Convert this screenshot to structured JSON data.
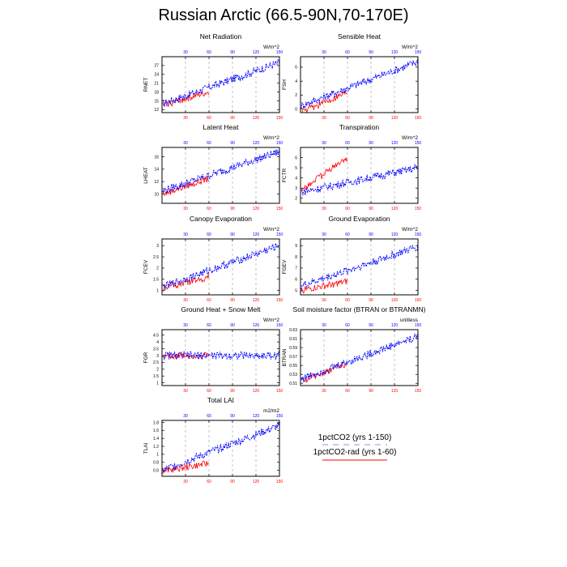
{
  "title": "Russian Arctic (66.5-90N,70-170E)",
  "legend": {
    "items": [
      {
        "label": "1pctCO2 (yrs 1-150)",
        "color": "#0000ff",
        "dash": true
      },
      {
        "label": "1pctCO2-rad (yrs 1-60)",
        "color": "#ff0000",
        "dash": false
      }
    ]
  },
  "colors": {
    "series_full": "#0000ff",
    "series_rad": "#ff0000",
    "top_ticks": "#0000ff",
    "bottom_ticks": "#ff0000"
  },
  "chart_data": [
    {
      "type": "line",
      "title": "Net Radiation",
      "ylabel": "RNET",
      "units": "W/m^2",
      "x_ticks": [
        30,
        60,
        90,
        120,
        150
      ],
      "ylim": [
        11,
        30
      ],
      "yticks": [
        12,
        15,
        18,
        21,
        24,
        27
      ],
      "series": [
        {
          "name": "1pctCO2 (yrs 1-150)",
          "range": [
            14,
            28
          ]
        },
        {
          "name": "1pctCO2-rad (yrs 1-60)",
          "range": [
            13.5,
            18
          ]
        }
      ]
    },
    {
      "type": "line",
      "title": "Sensible Heat",
      "ylabel": "FSH",
      "units": "W/m^2",
      "x_ticks": [
        30,
        60,
        90,
        120,
        150
      ],
      "ylim": [
        -0.5,
        7.5
      ],
      "yticks": [
        0.0,
        2.0,
        4.0,
        6.0
      ],
      "series": [
        {
          "name": "1pctCO2 (yrs 1-150)",
          "range": [
            0.5,
            6.8
          ]
        },
        {
          "name": "1pctCO2-rad (yrs 1-60)",
          "range": [
            -0.5,
            2.5
          ]
        }
      ]
    },
    {
      "type": "line",
      "title": "Latent Heat",
      "ylabel": "LHEAT",
      "units": "W/m^2",
      "x_ticks": [
        30,
        60,
        90,
        120,
        150
      ],
      "ylim": [
        8.5,
        17.5
      ],
      "yticks": [
        10,
        12,
        14,
        16
      ],
      "series": [
        {
          "name": "1pctCO2 (yrs 1-150)",
          "range": [
            10.5,
            16.8
          ]
        },
        {
          "name": "1pctCO2-rad (yrs 1-60)",
          "range": [
            10,
            12.5
          ]
        }
      ]
    },
    {
      "type": "line",
      "title": "Transpiration",
      "ylabel": "FCTR",
      "units": "W/m^2",
      "x_ticks": [
        30,
        60,
        90,
        120,
        150
      ],
      "ylim": [
        1.5,
        7.0
      ],
      "yticks": [
        2.0,
        3.0,
        4.0,
        5.0,
        6.0
      ],
      "series": [
        {
          "name": "1pctCO2 (yrs 1-150)",
          "range": [
            2.6,
            5.0
          ]
        },
        {
          "name": "1pctCO2-rad (yrs 1-60)",
          "range": [
            2.8,
            6.0
          ]
        }
      ]
    },
    {
      "type": "line",
      "title": "Canopy Evaporation",
      "ylabel": "FCEV",
      "units": "W/m^2",
      "x_ticks": [
        30,
        60,
        90,
        120,
        150
      ],
      "ylim": [
        0.8,
        3.3
      ],
      "yticks": [
        1.0,
        1.5,
        2.0,
        2.5,
        3.0
      ],
      "series": [
        {
          "name": "1pctCO2 (yrs 1-150)",
          "range": [
            1.15,
            3.0
          ]
        },
        {
          "name": "1pctCO2-rad (yrs 1-60)",
          "range": [
            1.1,
            1.6
          ]
        }
      ]
    },
    {
      "type": "line",
      "title": "Ground Evaporation",
      "ylabel": "FGEV",
      "units": "W/m^2",
      "x_ticks": [
        30,
        60,
        90,
        120,
        150
      ],
      "ylim": [
        4.6,
        9.6
      ],
      "yticks": [
        5.0,
        6.0,
        7.0,
        8.0,
        9.0
      ],
      "series": [
        {
          "name": "1pctCO2 (yrs 1-150)",
          "range": [
            5.4,
            8.9
          ]
        },
        {
          "name": "1pctCO2-rad (yrs 1-60)",
          "range": [
            5.0,
            5.8
          ]
        }
      ]
    },
    {
      "type": "line",
      "title": "Ground Heat + Snow Melt",
      "ylabel": "FGR",
      "units": "W/m^2",
      "x_ticks": [
        30,
        60,
        90,
        120,
        150
      ],
      "ylim": [
        0.8,
        4.9
      ],
      "yticks": [
        1.0,
        1.5,
        2.0,
        2.5,
        3.0,
        3.5,
        4.0,
        4.5
      ],
      "series": [
        {
          "name": "1pctCO2 (yrs 1-150)",
          "range": [
            3.0,
            3.0
          ]
        },
        {
          "name": "1pctCO2-rad (yrs 1-60)",
          "range": [
            3.0,
            3.0
          ]
        }
      ]
    },
    {
      "type": "line",
      "title": "Soil moisture factor (BTRAN or BTRANMN)",
      "ylabel": "BTRAN",
      "units": "unitless",
      "x_ticks": [
        30,
        60,
        90,
        120,
        150
      ],
      "ylim": [
        0.505,
        0.63
      ],
      "yticks": [
        0.51,
        0.53,
        0.55,
        0.57,
        0.59,
        0.61,
        0.63
      ],
      "series": [
        {
          "name": "1pctCO2 (yrs 1-150)",
          "range": [
            0.52,
            0.615
          ]
        },
        {
          "name": "1pctCO2-rad (yrs 1-60)",
          "range": [
            0.515,
            0.555
          ]
        }
      ]
    },
    {
      "type": "line",
      "title": "Total LAI",
      "ylabel": "TLAI",
      "units": "m2/m2",
      "x_ticks": [
        30,
        60,
        90,
        120,
        150
      ],
      "ylim": [
        0.45,
        1.85
      ],
      "yticks": [
        0.6,
        0.8,
        1.0,
        1.2,
        1.4,
        1.6,
        1.8
      ],
      "series": [
        {
          "name": "1pctCO2 (yrs 1-150)",
          "range": [
            0.6,
            1.72
          ]
        },
        {
          "name": "1pctCO2-rad (yrs 1-60)",
          "range": [
            0.58,
            0.78
          ]
        }
      ]
    }
  ]
}
